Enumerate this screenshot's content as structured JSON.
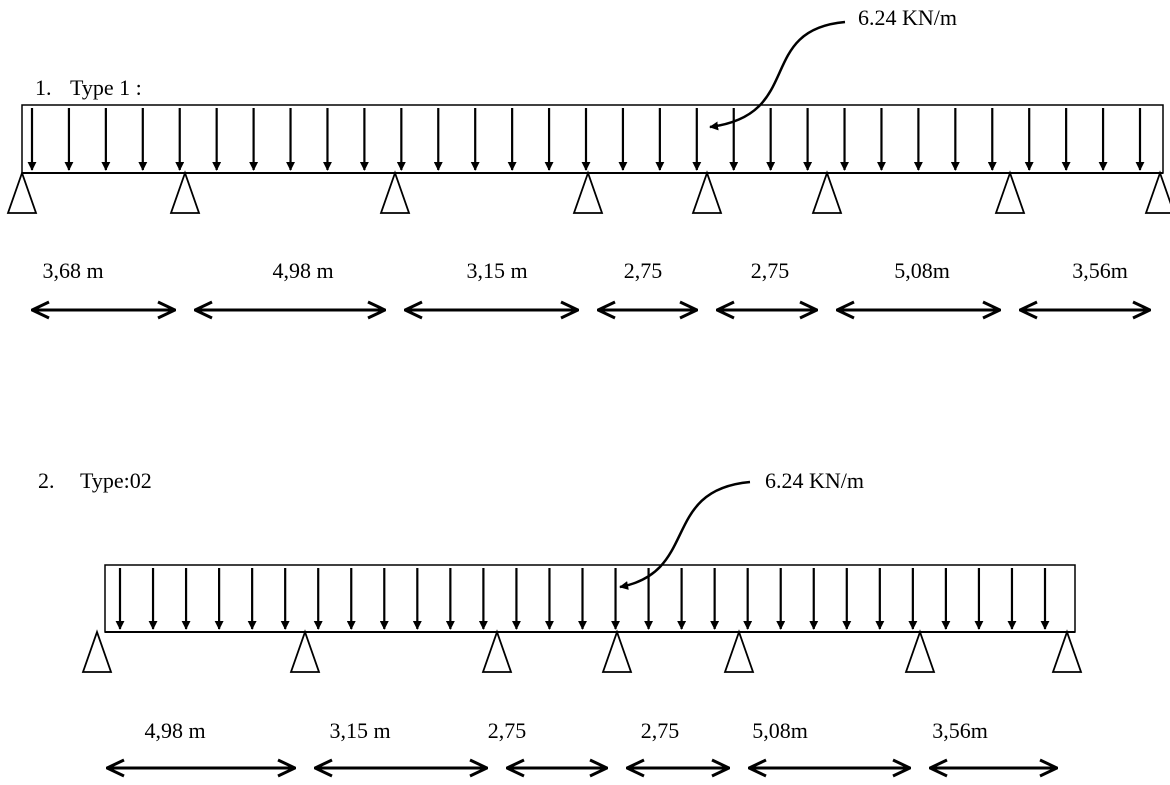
{
  "load_label": "6.24 KN/m",
  "diagrams": [
    {
      "id": "type-1",
      "number": "1.",
      "title": "Type 1 :",
      "supports": 8,
      "spans": [
        "3,68 m",
        "4,98 m",
        "3,15 m",
        "2,75",
        "2,75",
        "5,08m",
        "3,56m"
      ]
    },
    {
      "id": "type-02",
      "number": "2.",
      "title": "Type:02",
      "supports": 7,
      "spans": [
        "4,98 m",
        "3,15 m",
        "2,75",
        "2,75",
        "5,08m",
        "3,56m"
      ]
    }
  ]
}
